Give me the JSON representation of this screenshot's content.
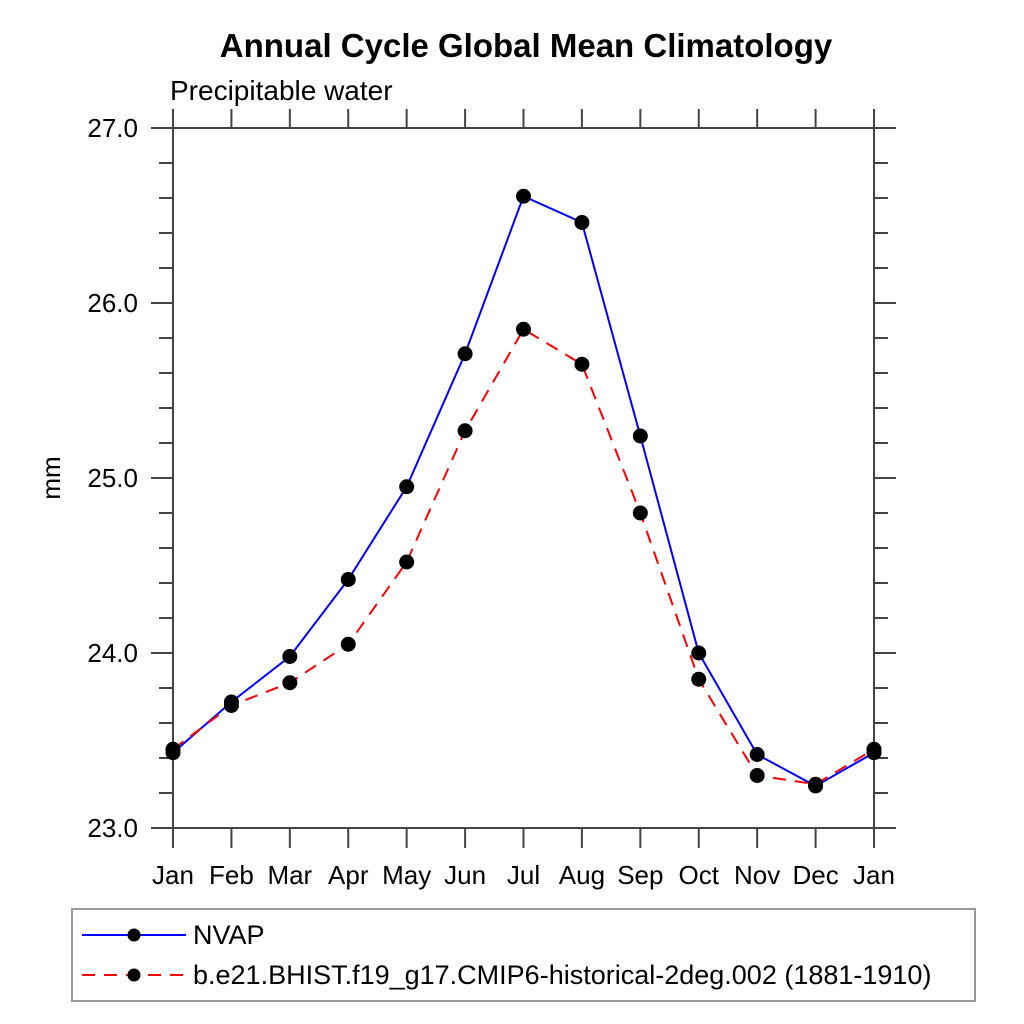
{
  "page": {
    "background": "#ffffff"
  },
  "chart_data": {
    "type": "line",
    "title": "Annual Cycle Global Mean Climatology",
    "subtitle": "Precipitable water",
    "ylabel": "mm",
    "xlabel": "",
    "categories": [
      "Jan",
      "Feb",
      "Mar",
      "Apr",
      "May",
      "Jun",
      "Jul",
      "Aug",
      "Sep",
      "Oct",
      "Nov",
      "Dec",
      "Jan"
    ],
    "ylim": [
      23.0,
      27.0
    ],
    "yticks_major": [
      23.0,
      24.0,
      25.0,
      26.0,
      27.0
    ],
    "ytick_minor_step": 0.2,
    "grid": false,
    "axis_color": "#444444",
    "text_color": "#000000",
    "legend_position": "bottom-left-box",
    "series": [
      {
        "name": "NVAP",
        "color": "#0000ff",
        "line_style": "solid",
        "marker": "filled-circle",
        "marker_color": "#000000",
        "values": [
          23.43,
          23.72,
          23.98,
          24.42,
          24.95,
          25.71,
          26.61,
          26.46,
          25.24,
          24.0,
          23.42,
          23.24,
          23.43
        ]
      },
      {
        "name": "b.e21.BHIST.f19_g17.CMIP6-historical-2deg.002 (1881-1910)",
        "color": "#ff0000",
        "line_style": "dashed",
        "marker": "filled-circle",
        "marker_color": "#000000",
        "values": [
          23.45,
          23.7,
          23.83,
          24.05,
          24.52,
          25.27,
          25.85,
          25.65,
          24.8,
          23.85,
          23.3,
          23.25,
          23.45
        ]
      }
    ]
  }
}
